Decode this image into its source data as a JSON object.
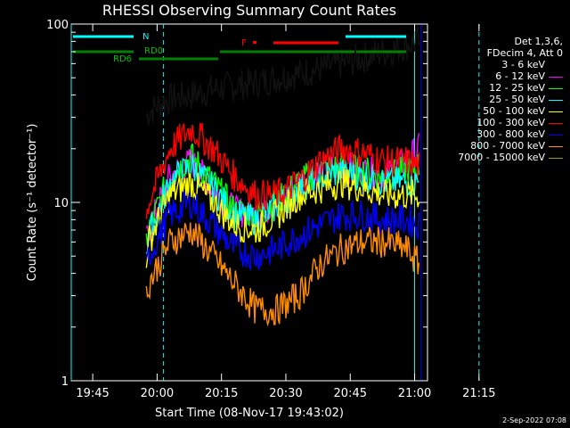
{
  "chart_data": {
    "type": "line",
    "title": "RHESSI Observing Summary Count Rates",
    "xlabel": "Start Time (08-Nov-17 19:43:02)",
    "ylabel": "Count Rate (s⁻¹ detector⁻¹)",
    "y_scale": "log",
    "ylim": [
      1,
      100
    ],
    "y_ticks": [
      1,
      10,
      100
    ],
    "x_range_min": [
      -3,
      80
    ],
    "x_ticks": [
      {
        "t": 2,
        "label": "19:45"
      },
      {
        "t": 17,
        "label": "20:00"
      },
      {
        "t": 32,
        "label": "20:15"
      },
      {
        "t": 47,
        "label": "20:30"
      },
      {
        "t": 62,
        "label": "20:45"
      },
      {
        "t": 77,
        "label": "21:00"
      },
      {
        "t": 92,
        "label": "21:15"
      }
    ],
    "legend_header": [
      "Det 1,3,6,",
      "FDecim 4, Att 0"
    ],
    "series": [
      {
        "name": "3 - 6 keV",
        "color": "#000000",
        "points": [
          [
            14.5,
            30
          ],
          [
            15,
            32
          ],
          [
            17,
            35
          ],
          [
            20,
            38
          ],
          [
            25,
            40
          ],
          [
            30,
            43
          ],
          [
            35,
            45
          ],
          [
            40,
            47
          ],
          [
            45,
            50
          ],
          [
            50,
            53
          ],
          [
            55,
            56
          ],
          [
            60,
            60
          ],
          [
            65,
            65
          ],
          [
            70,
            70
          ],
          [
            75,
            76
          ],
          [
            78,
            80
          ]
        ]
      },
      {
        "name": "6 - 12 keV",
        "color": "#ff00ff",
        "points": [
          [
            14.5,
            6
          ],
          [
            15,
            7
          ],
          [
            20,
            14
          ],
          [
            25,
            17
          ],
          [
            30,
            12
          ],
          [
            35,
            9
          ],
          [
            40,
            8.5
          ],
          [
            45,
            10
          ],
          [
            50,
            13
          ],
          [
            55,
            15
          ],
          [
            60,
            16
          ],
          [
            65,
            15
          ],
          [
            70,
            14
          ],
          [
            75,
            17
          ],
          [
            78,
            20
          ]
        ]
      },
      {
        "name": "12 - 25 keV",
        "color": "#00ff00",
        "points": [
          [
            14.5,
            6
          ],
          [
            15,
            7
          ],
          [
            20,
            14
          ],
          [
            25,
            18
          ],
          [
            30,
            13
          ],
          [
            35,
            9
          ],
          [
            40,
            8.5
          ],
          [
            45,
            10
          ],
          [
            50,
            13
          ],
          [
            55,
            15
          ],
          [
            60,
            16
          ],
          [
            65,
            15
          ],
          [
            70,
            14
          ],
          [
            75,
            15
          ],
          [
            78,
            16
          ]
        ]
      },
      {
        "name": "25 - 50 keV",
        "color": "#00ffff",
        "points": [
          [
            14.5,
            5.5
          ],
          [
            15,
            6.5
          ],
          [
            20,
            13
          ],
          [
            25,
            16
          ],
          [
            30,
            12
          ],
          [
            35,
            8.5
          ],
          [
            40,
            8
          ],
          [
            45,
            9.5
          ],
          [
            50,
            12
          ],
          [
            55,
            14
          ],
          [
            60,
            15
          ],
          [
            65,
            14
          ],
          [
            70,
            13
          ],
          [
            75,
            13
          ],
          [
            78,
            13
          ]
        ]
      },
      {
        "name": "50 - 100 keV",
        "color": "#ffff00",
        "points": [
          [
            14.5,
            5
          ],
          [
            15,
            6
          ],
          [
            20,
            11
          ],
          [
            25,
            13
          ],
          [
            30,
            10
          ],
          [
            35,
            7.5
          ],
          [
            40,
            7
          ],
          [
            45,
            8.5
          ],
          [
            50,
            11
          ],
          [
            55,
            12
          ],
          [
            60,
            13
          ],
          [
            65,
            12
          ],
          [
            70,
            11
          ],
          [
            75,
            11
          ],
          [
            78,
            11
          ]
        ]
      },
      {
        "name": "100 - 300 keV",
        "color": "#ff0000",
        "points": [
          [
            14.5,
            8
          ],
          [
            15,
            10
          ],
          [
            20,
            20
          ],
          [
            25,
            26
          ],
          [
            30,
            20
          ],
          [
            35,
            14
          ],
          [
            40,
            11
          ],
          [
            45,
            11
          ],
          [
            50,
            13
          ],
          [
            55,
            17
          ],
          [
            60,
            20
          ],
          [
            65,
            19
          ],
          [
            70,
            17
          ],
          [
            75,
            17
          ],
          [
            78,
            16
          ]
        ]
      },
      {
        "name": "300 - 800 keV",
        "color": "#0000ff",
        "points": [
          [
            14.5,
            4
          ],
          [
            15,
            5
          ],
          [
            20,
            8.5
          ],
          [
            25,
            10
          ],
          [
            30,
            7.5
          ],
          [
            35,
            5.5
          ],
          [
            40,
            5
          ],
          [
            45,
            5.5
          ],
          [
            50,
            6.5
          ],
          [
            55,
            7.5
          ],
          [
            60,
            8.5
          ],
          [
            65,
            8.5
          ],
          [
            70,
            8
          ],
          [
            75,
            8
          ],
          [
            78,
            7.5
          ]
        ]
      },
      {
        "name": "800 - 7000 keV",
        "color": "#ff8c00",
        "points": [
          [
            14.5,
            3
          ],
          [
            15,
            3.5
          ],
          [
            20,
            6
          ],
          [
            25,
            7
          ],
          [
            30,
            5
          ],
          [
            35,
            3.5
          ],
          [
            40,
            2.5
          ],
          [
            45,
            2.5
          ],
          [
            50,
            3
          ],
          [
            55,
            4.5
          ],
          [
            60,
            5.5
          ],
          [
            65,
            6
          ],
          [
            70,
            6
          ],
          [
            75,
            5.5
          ],
          [
            78,
            4.5
          ]
        ]
      },
      {
        "name": "7000 - 15000 keV",
        "color": "#a0a000",
        "points": []
      }
    ],
    "vertical_lines": [
      {
        "t": -3,
        "color": "#00ffff",
        "style": "solid"
      },
      {
        "t": 18.5,
        "color": "#00ffff",
        "style": "dashed"
      },
      {
        "t": 77,
        "color": "#00ffff",
        "style": "solid"
      },
      {
        "t": 92,
        "color": "#00ffff",
        "style": "dashed"
      },
      {
        "t": 78.5,
        "color": "#0000ff",
        "style": "solid"
      }
    ],
    "annotations": [
      {
        "label": "N",
        "color": "#00ffff"
      },
      {
        "label": "RD0",
        "color": "#00c000"
      },
      {
        "label": "RD6",
        "color": "#00c000"
      },
      {
        "label": "F",
        "color": "#ff0000"
      }
    ]
  },
  "timestamp": "2-Sep-2022 07:08"
}
